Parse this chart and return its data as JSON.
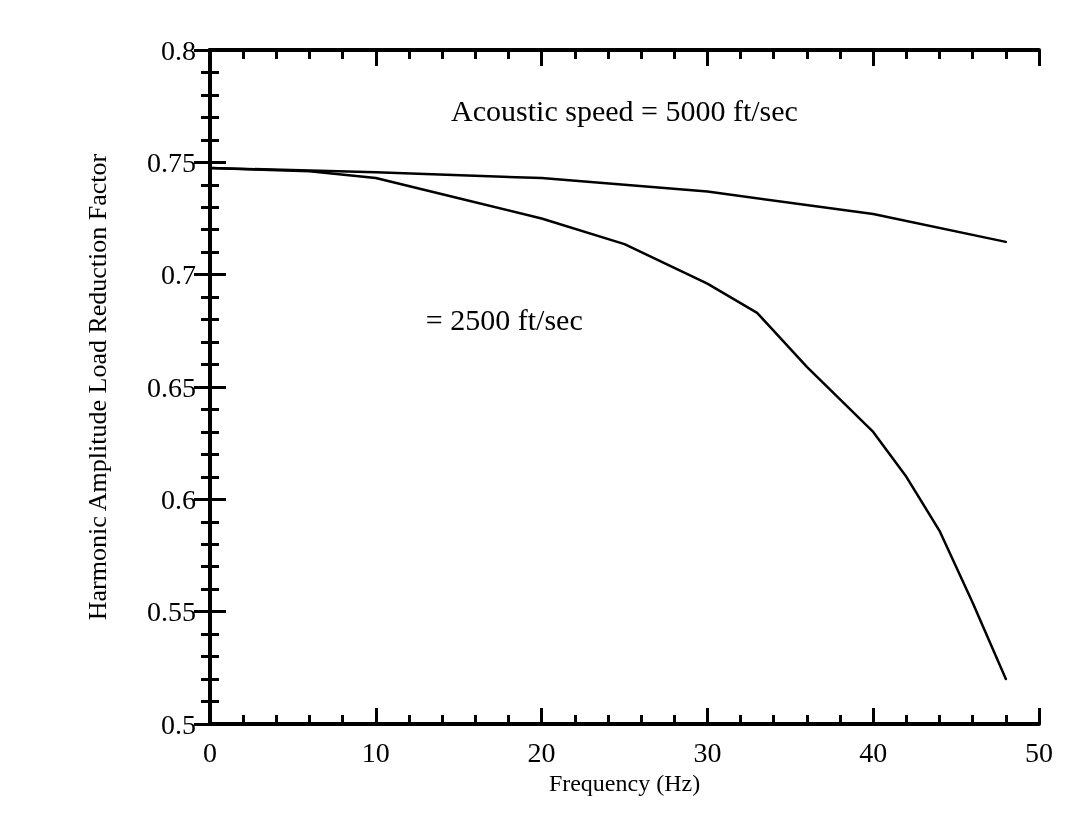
{
  "chart_data": {
    "type": "line",
    "xlabel": "Frequency (Hz)",
    "ylabel": "Harmonic Amplitude Load Reduction Factor",
    "xlim": [
      0,
      50
    ],
    "xticks": [
      0,
      10,
      20,
      30,
      40,
      50
    ],
    "ylim": [
      0.5,
      0.8
    ],
    "yticks": [
      0.5,
      0.55,
      0.6,
      0.65,
      0.7,
      0.75,
      0.8
    ],
    "grid": false,
    "marker": "none",
    "line_style": "solid",
    "series": [
      {
        "color": "#000000",
        "x": [
          0,
          10,
          20,
          30,
          40,
          48
        ],
        "values": [
          0.7475,
          0.7456,
          0.743,
          0.737,
          0.727,
          0.7146
        ]
      },
      {
        "color": "#000000",
        "x": [
          0,
          6,
          10,
          15,
          20,
          25,
          30,
          33,
          36,
          40,
          42,
          44,
          46,
          48
        ],
        "values": [
          0.7475,
          0.746,
          0.743,
          0.734,
          0.725,
          0.7136,
          0.696,
          0.683,
          0.659,
          0.63,
          0.61,
          0.586,
          0.554,
          0.52
        ]
      }
    ],
    "annotations": [
      "Acoustic speed = 5000 ft/sec",
      "= 2500 ft/sec"
    ]
  }
}
